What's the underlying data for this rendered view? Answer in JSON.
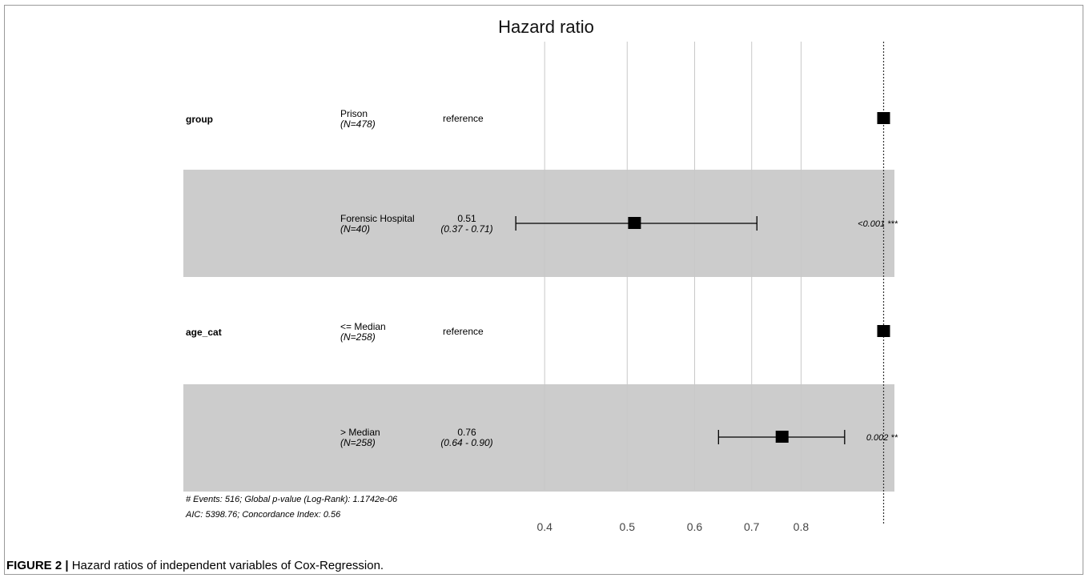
{
  "chart_data": {
    "type": "forest",
    "title": "Hazard ratio",
    "scale": "log",
    "x_ticks": [
      0.4,
      0.5,
      0.6,
      0.7,
      0.8
    ],
    "x_tick_labels": [
      "0.4",
      "0.5",
      "0.6",
      "0.7",
      "0.8"
    ],
    "reference_line": 1.0,
    "x_range": [
      0.3,
      1.05
    ],
    "rows": [
      {
        "variable": "group",
        "level": "Prison",
        "n": "(N=478)",
        "estimate_label": "reference",
        "ci_label": "",
        "hr": 1.0,
        "lower": null,
        "upper": null,
        "p_label": "",
        "shaded": false
      },
      {
        "variable": "",
        "level": "Forensic Hospital",
        "n": "(N=40)",
        "estimate_label": "0.51",
        "ci_label": "(0.37 - 0.71)",
        "hr": 0.51,
        "lower": 0.37,
        "upper": 0.71,
        "p_label": "<0.001 ***",
        "shaded": true
      },
      {
        "variable": "age_cat",
        "level": "<= Median",
        "n": "(N=258)",
        "estimate_label": "reference",
        "ci_label": "",
        "hr": 1.0,
        "lower": null,
        "upper": null,
        "p_label": "",
        "shaded": false
      },
      {
        "variable": "",
        "level": "> Median",
        "n": "(N=258)",
        "estimate_label": "0.76",
        "ci_label": "(0.64 - 0.90)",
        "hr": 0.76,
        "lower": 0.64,
        "upper": 0.9,
        "p_label": "0.002 **",
        "shaded": true
      }
    ],
    "footnotes": [
      "# Events: 516; Global p-value (Log-Rank): 1.1742e-06",
      "AIC: 5398.76; Concordance Index: 0.56"
    ],
    "colors": {
      "band": "#cccccc",
      "grid": "#c8c8c8",
      "marker": "#000000"
    }
  },
  "caption": {
    "label": "FIGURE 2 |",
    "text": " Hazard ratios of independent variables of Cox-Regression."
  }
}
